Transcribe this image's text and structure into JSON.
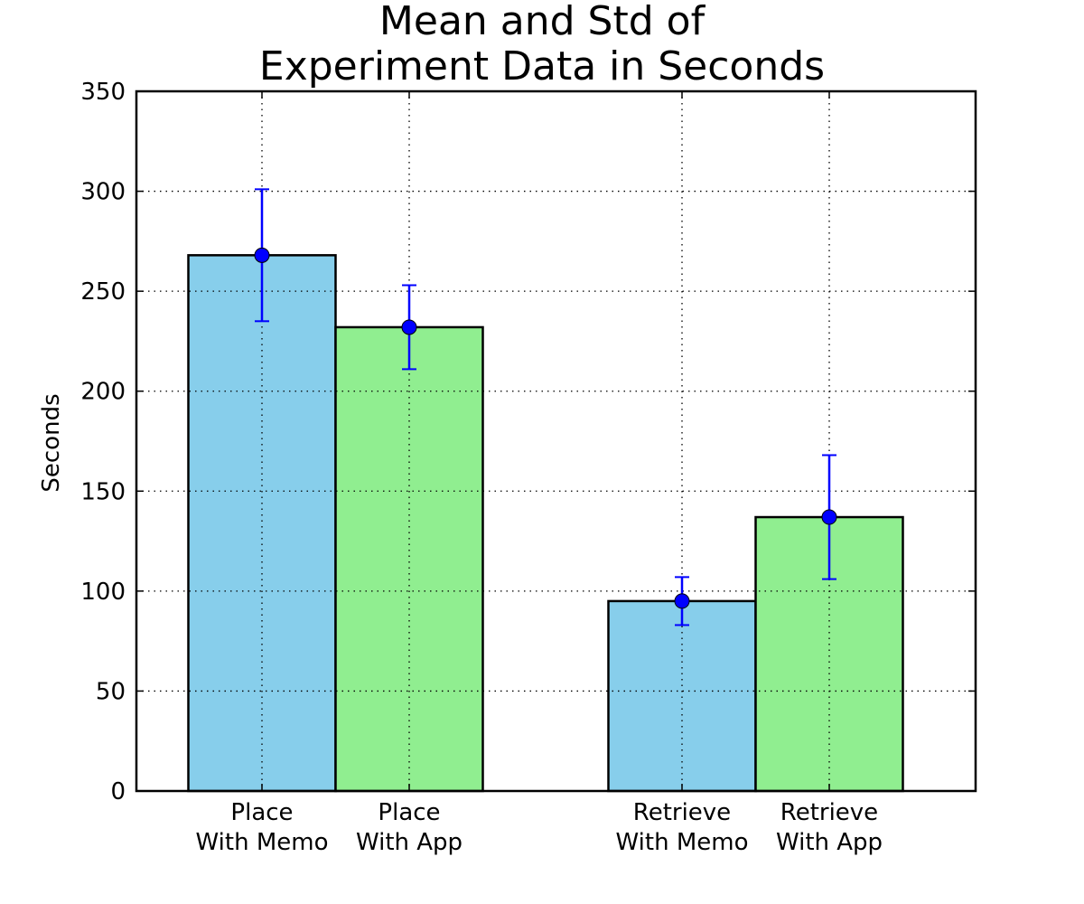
{
  "chart_data": {
    "type": "bar",
    "title_lines": [
      "Mean and Std of",
      "Experiment Data in Seconds"
    ],
    "xlabel": "",
    "ylabel": "Seconds",
    "ylim": [
      0,
      350
    ],
    "yticks": [
      0,
      50,
      100,
      150,
      200,
      250,
      300,
      350
    ],
    "grid": true,
    "categories": [
      {
        "line1": "Place",
        "line2": "With Memo"
      },
      {
        "line1": "Place",
        "line2": "With App"
      },
      {
        "line1": "Retrieve",
        "line2": "With Memo"
      },
      {
        "line1": "Retrieve",
        "line2": "With App"
      }
    ],
    "values": [
      268,
      232,
      95,
      137
    ],
    "std": [
      33,
      21,
      12,
      31
    ],
    "bar_colors": [
      "#87ceeb",
      "#90ee90",
      "#87ceeb",
      "#90ee90"
    ],
    "errorbar_color": "#0000ff"
  }
}
